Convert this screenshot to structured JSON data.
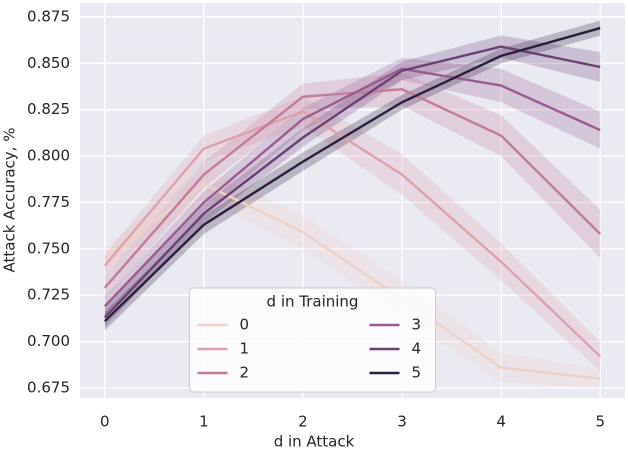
{
  "chart_data": {
    "type": "line",
    "xlabel": "d in Attack",
    "ylabel": "Attack Accuracy, %",
    "legend_title": "d in Training",
    "legend_loc": "lower center",
    "grid": true,
    "x": [
      0,
      1,
      2,
      3,
      4,
      5
    ],
    "xlim": [
      -0.25,
      5.25
    ],
    "xticks": [
      0,
      1,
      2,
      3,
      4,
      5
    ],
    "ylim": [
      0.6696,
      0.8825
    ],
    "yticks": [
      0.675,
      {
        "value": 0.7,
        "label": "0.700"
      },
      0.725,
      {
        "value": 0.75,
        "label": "0.750"
      },
      0.775,
      {
        "value": 0.8,
        "label": "0.800"
      },
      0.825,
      {
        "value": 0.85,
        "label": "0.850"
      },
      0.875
    ],
    "series": [
      {
        "name": "0",
        "color": "#efd1c6",
        "values": [
          0.745,
          0.785,
          0.759,
          0.723,
          0.686,
          0.68
        ],
        "errors": [
          0.006,
          0.008,
          0.009,
          0.01,
          0.008,
          0.005
        ]
      },
      {
        "name": "1",
        "color": "#dea1ab",
        "values": [
          0.741,
          0.804,
          0.824,
          0.79,
          0.743,
          0.692
        ],
        "errors": [
          0.006,
          0.007,
          0.008,
          0.011,
          0.01,
          0.008
        ]
      },
      {
        "name": "2",
        "color": "#c27c9a",
        "values": [
          0.729,
          0.79,
          0.832,
          0.836,
          0.811,
          0.758
        ],
        "errors": [
          0.006,
          0.007,
          0.007,
          0.009,
          0.011,
          0.013
        ]
      },
      {
        "name": "3",
        "color": "#9a5b8e",
        "values": [
          0.719,
          0.775,
          0.82,
          0.847,
          0.838,
          0.814
        ],
        "errors": [
          0.005,
          0.006,
          0.006,
          0.006,
          0.009,
          0.01
        ]
      },
      {
        "name": "4",
        "color": "#6c3f76",
        "values": [
          0.713,
          0.769,
          0.81,
          0.846,
          0.859,
          0.848
        ],
        "errors": [
          0.005,
          0.005,
          0.005,
          0.005,
          0.006,
          0.008
        ]
      },
      {
        "name": "5",
        "color": "#2d1e3e",
        "values": [
          0.711,
          0.763,
          0.797,
          0.829,
          0.854,
          0.869
        ],
        "errors": [
          0.005,
          0.005,
          0.005,
          0.004,
          0.004,
          0.004
        ]
      }
    ]
  }
}
